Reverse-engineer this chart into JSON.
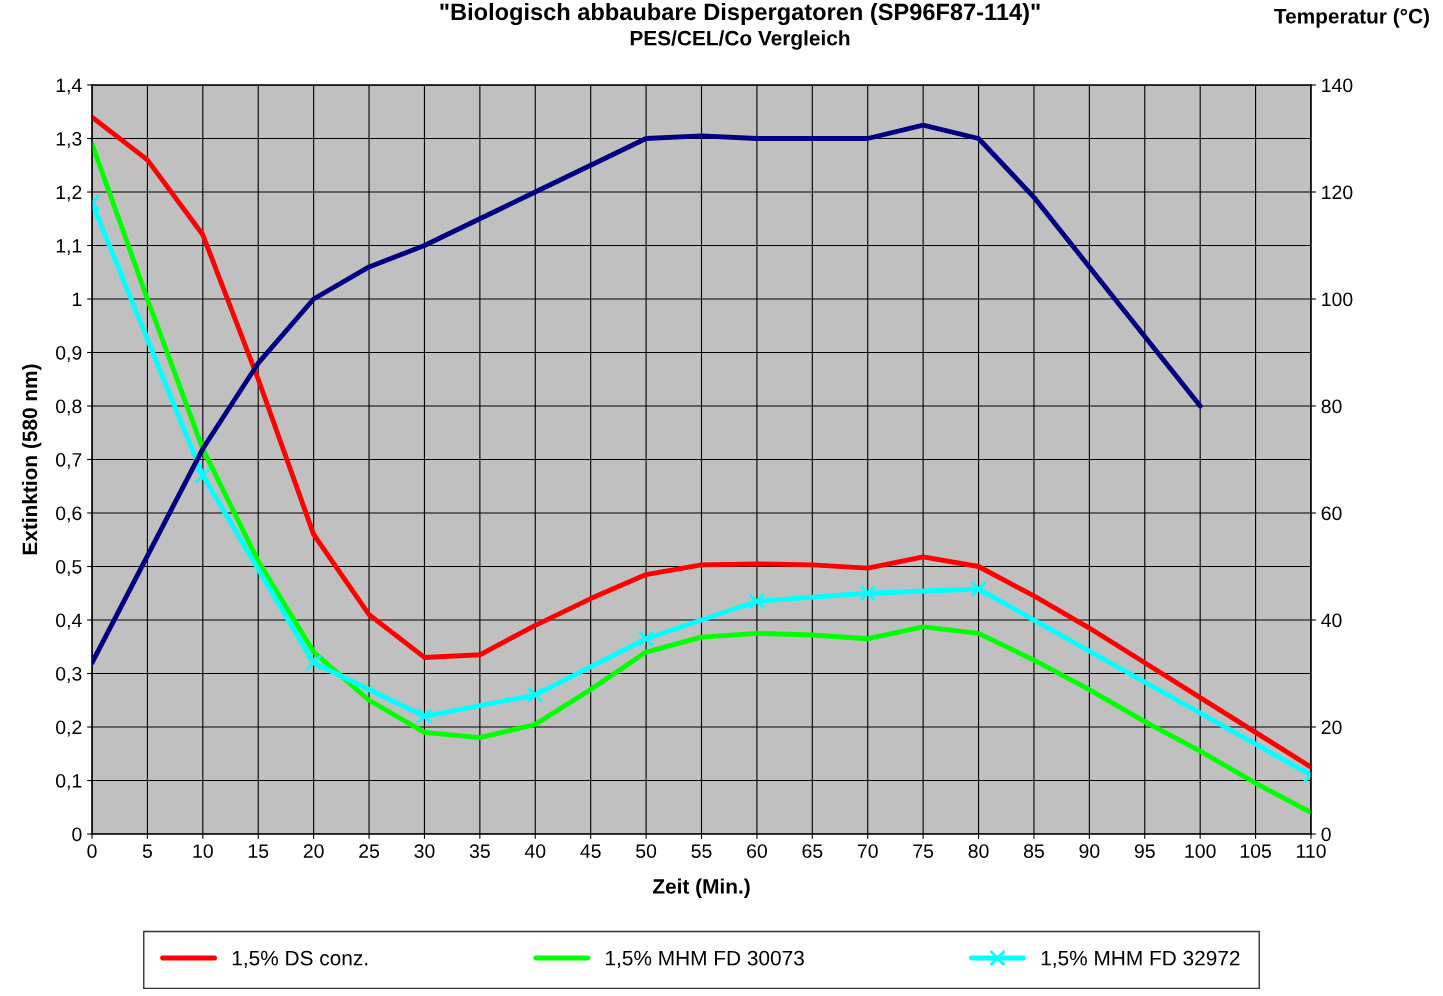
{
  "chart_data": {
    "type": "line",
    "title": "\"Biologisch abbaubare Dispergatoren (SP96F87-114)\"",
    "subtitle": "PES/CEL/Co Vergleich",
    "xlabel": "Zeit (Min.)",
    "ylabel": "Extinktion (580 nm)",
    "y2label": "Temperatur (°C)",
    "xlim": [
      0,
      110
    ],
    "xticks": [
      0,
      5,
      10,
      15,
      20,
      25,
      30,
      35,
      40,
      45,
      50,
      55,
      60,
      65,
      70,
      75,
      80,
      85,
      90,
      95,
      100,
      105,
      110
    ],
    "ylim": [
      0,
      1.4
    ],
    "yticks": [
      {
        "value": 0,
        "label": "0"
      },
      {
        "value": 0.1,
        "label": "0,1"
      },
      {
        "value": 0.2,
        "label": "0,2"
      },
      {
        "value": 0.3,
        "label": "0,3"
      },
      {
        "value": 0.4,
        "label": "0,4"
      },
      {
        "value": 0.5,
        "label": "0,5"
      },
      {
        "value": 0.6,
        "label": "0,6"
      },
      {
        "value": 0.7,
        "label": "0,7"
      },
      {
        "value": 0.8,
        "label": "0,8"
      },
      {
        "value": 0.9,
        "label": "0,9"
      },
      {
        "value": 1,
        "label": "1"
      },
      {
        "value": 1.1,
        "label": "1,1"
      },
      {
        "value": 1.2,
        "label": "1,2"
      },
      {
        "value": 1.3,
        "label": "1,3"
      },
      {
        "value": 1.4,
        "label": "1,4"
      }
    ],
    "y2lim": [
      0,
      140
    ],
    "y2ticks": [
      0,
      20,
      40,
      60,
      80,
      100,
      120,
      140
    ],
    "grid": true,
    "legend": "bottom",
    "line_style": "solid",
    "series": [
      {
        "name": "1,5% DS conz.",
        "color": "#ff0000",
        "marker": "none",
        "x": [
          0,
          5,
          10,
          15,
          20,
          25,
          30,
          35,
          40,
          45,
          50,
          55,
          60,
          65,
          70,
          75,
          80,
          85,
          90,
          95,
          100,
          105,
          110
        ],
        "values": [
          1.34,
          1.26,
          1.12,
          0.85,
          0.56,
          0.41,
          0.33,
          0.335,
          0.39,
          0.44,
          0.485,
          0.503,
          0.505,
          0.503,
          0.497,
          0.518,
          0.5,
          0.445,
          0.385,
          0.32,
          0.255,
          0.19,
          0.125
        ]
      },
      {
        "name": "1,5% MHM FD 30073",
        "color": "#00ff00",
        "marker": "none",
        "x": [
          0,
          5,
          10,
          15,
          20,
          25,
          30,
          35,
          40,
          45,
          50,
          55,
          60,
          65,
          70,
          75,
          80,
          85,
          90,
          95,
          100,
          105,
          110
        ],
        "values": [
          1.29,
          1.0,
          0.72,
          0.51,
          0.34,
          0.25,
          0.19,
          0.18,
          0.205,
          0.27,
          0.34,
          0.368,
          0.375,
          0.372,
          0.365,
          0.387,
          0.375,
          0.325,
          0.27,
          0.21,
          0.155,
          0.095,
          0.04
        ]
      },
      {
        "name": "1,5% MHM FD 32972",
        "color": "#00ffff",
        "marker": "cross",
        "x": [
          0,
          10,
          20,
          30,
          40,
          50,
          60,
          70,
          80,
          110
        ],
        "values": [
          1.18,
          0.67,
          0.32,
          0.22,
          0.26,
          0.365,
          0.435,
          0.45,
          0.458,
          0.11
        ]
      },
      {
        "color": "#000080",
        "marker": "none",
        "axis": "y2",
        "x": [
          0,
          5,
          10,
          15,
          20,
          25,
          30,
          35,
          40,
          45,
          50,
          55,
          60,
          65,
          70,
          75,
          80,
          85,
          90,
          95,
          100
        ],
        "values": [
          32,
          52,
          72,
          88,
          100,
          106,
          110,
          115,
          120,
          125,
          130,
          130.5,
          130,
          130,
          130,
          132.5,
          130,
          119,
          106,
          93,
          80
        ]
      }
    ]
  }
}
